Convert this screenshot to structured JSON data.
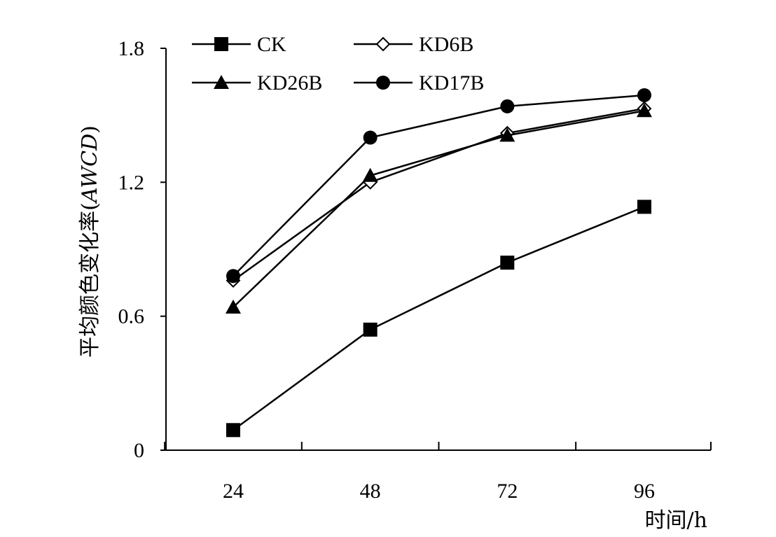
{
  "chart_data": {
    "type": "line",
    "x": [
      24,
      48,
      72,
      96
    ],
    "series": [
      {
        "name": "CK",
        "marker": "square",
        "values": [
          0.09,
          0.54,
          0.84,
          1.09
        ]
      },
      {
        "name": "KD6B",
        "marker": "diamond-open",
        "values": [
          0.76,
          1.2,
          1.42,
          1.53
        ]
      },
      {
        "name": "KD26B",
        "marker": "triangle",
        "values": [
          0.64,
          1.23,
          1.41,
          1.52
        ]
      },
      {
        "name": "KD17B",
        "marker": "circle",
        "values": [
          0.78,
          1.4,
          1.54,
          1.59
        ]
      }
    ],
    "xlabel": "时间/h",
    "ylabel_prefix": "平均颜色变化率(",
    "ylabel_italic": "AWCD",
    "ylabel_suffix": ")",
    "ylim": [
      0,
      1.8
    ],
    "yticks": [
      "0",
      "0.6",
      "1.2",
      "1.8"
    ],
    "xticks": [
      "24",
      "48",
      "72",
      "96"
    ],
    "legend_position": "top-left inside, two columns",
    "grid": false,
    "colors": {
      "line": "#000000",
      "background": "#ffffff"
    }
  }
}
